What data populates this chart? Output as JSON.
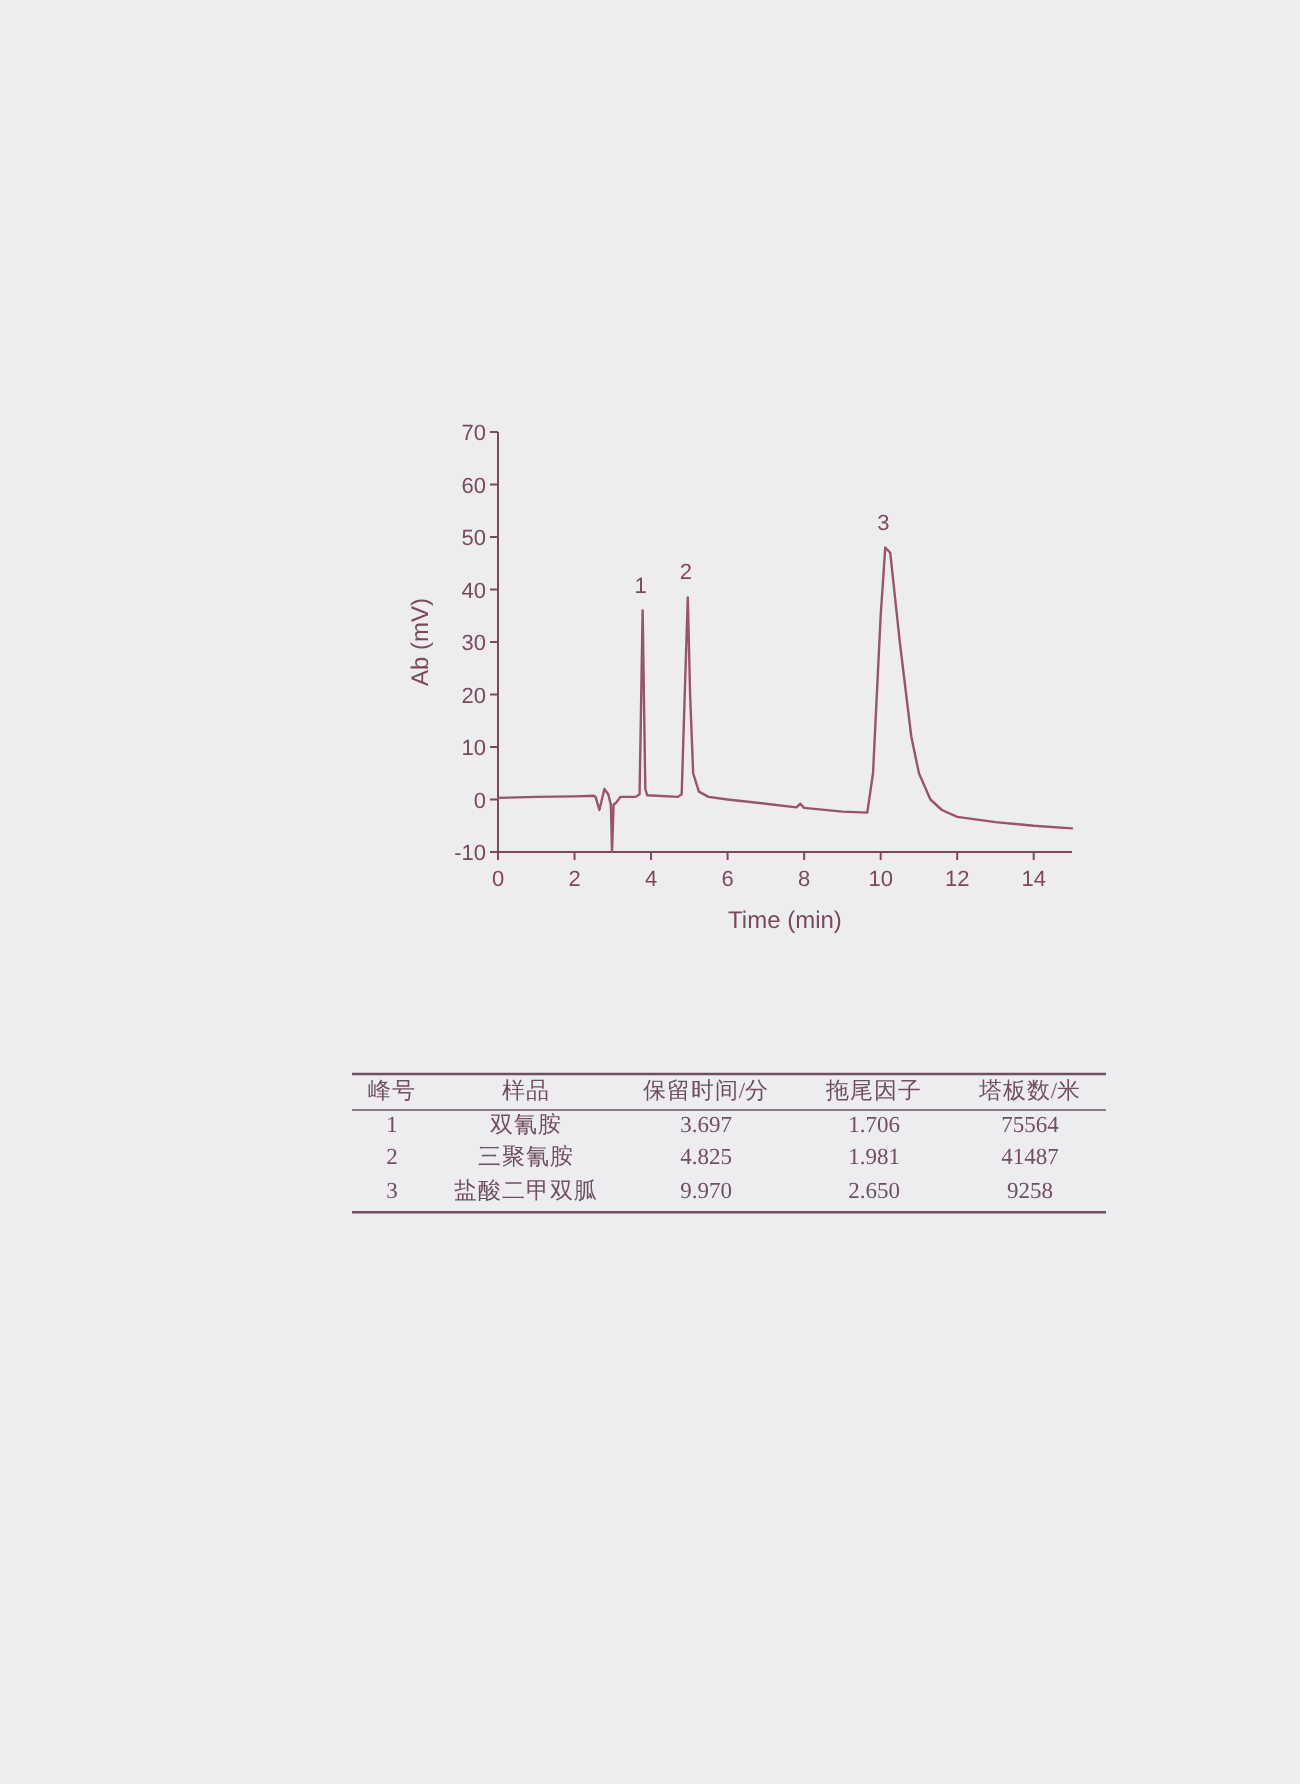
{
  "chart_data": {
    "type": "line",
    "xlabel": "Time (min)",
    "ylabel": "Ab (mV)",
    "xlim": [
      0,
      15
    ],
    "ylim": [
      -10,
      70
    ],
    "xticks": [
      0,
      2,
      4,
      6,
      8,
      10,
      12,
      14
    ],
    "yticks": [
      -10,
      0,
      10,
      20,
      30,
      40,
      50,
      60,
      70
    ],
    "grid": false,
    "series": [
      {
        "color": "#9a5468",
        "x": [
          0,
          1,
          2,
          2.5,
          2.55,
          2.65,
          2.78,
          2.88,
          2.95,
          2.98,
          3.02,
          3.1,
          3.2,
          3.6,
          3.7,
          3.78,
          3.85,
          3.9,
          4.7,
          4.8,
          4.88,
          4.96,
          5.02,
          5.1,
          5.25,
          5.5,
          6,
          7,
          7.8,
          7.9,
          8,
          9,
          9.65,
          9.8,
          10,
          10.12,
          10.25,
          10.5,
          10.8,
          11,
          11.3,
          11.6,
          12,
          13,
          14,
          15
        ],
        "values": [
          0.3,
          0.5,
          0.6,
          0.7,
          0.5,
          -2,
          2,
          1,
          -1,
          -10,
          -1,
          -0.5,
          0.5,
          0.5,
          1,
          36,
          2,
          0.8,
          0.5,
          1,
          20,
          38.5,
          20,
          5,
          1.5,
          0.5,
          0,
          -0.8,
          -1.5,
          -0.8,
          -1.6,
          -2.3,
          -2.5,
          5,
          35,
          48,
          47,
          30,
          12,
          5,
          0,
          -2,
          -3.3,
          -4.3,
          -5,
          -5.5
        ]
      }
    ],
    "annotations": [
      {
        "text": "1",
        "x": 3.78,
        "y": 36
      },
      {
        "text": "2",
        "x": 4.96,
        "y": 38.5
      },
      {
        "text": "3",
        "x": 10.12,
        "y": 48
      },
      "峰号",
      "样品",
      "保留时间/分",
      "拖尾因子",
      "塔板数/米",
      "1",
      "双氰胺",
      "3.697",
      "1.706",
      "75564",
      "2",
      "三聚氰胺",
      "4.825",
      "1.981",
      "41487",
      "3",
      "盐酸二甲双胍",
      "9.970",
      "2.650",
      "9258"
    ]
  }
}
